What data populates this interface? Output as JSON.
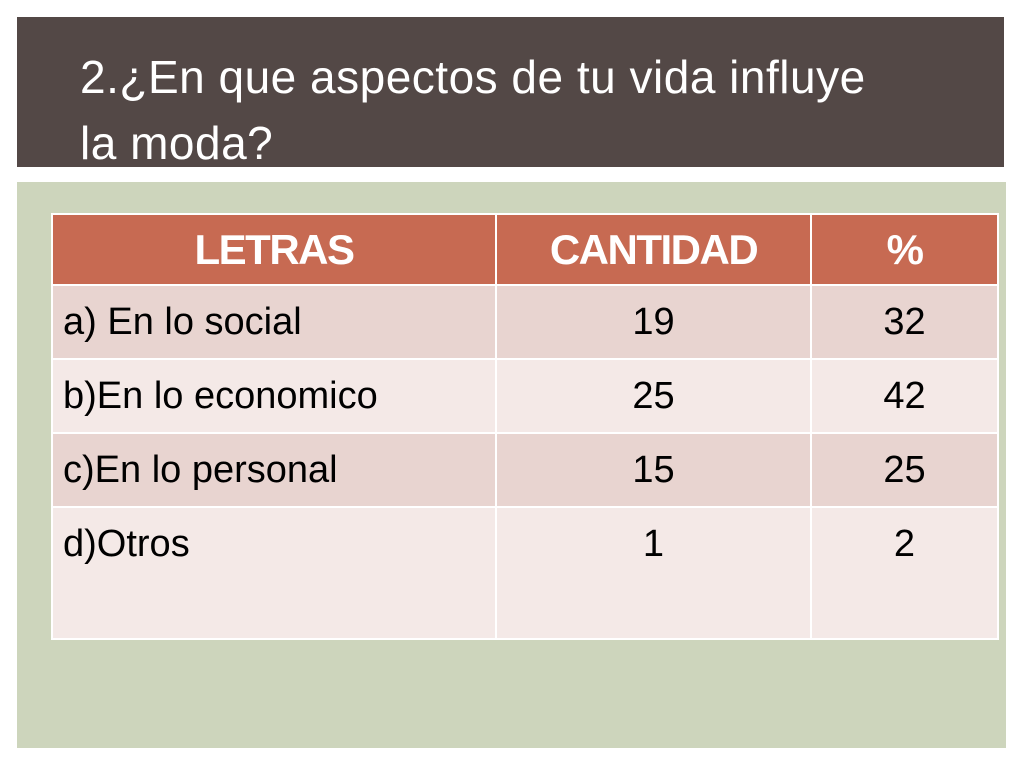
{
  "slide": {
    "title": "2.¿En que aspectos de tu vida influye la moda?"
  },
  "table": {
    "headers": [
      "LETRAS",
      "CANTIDAD",
      "%"
    ],
    "rows": [
      {
        "letra": "a) En lo social",
        "cantidad": "19",
        "porcentaje": "32"
      },
      {
        "letra": "b)En lo economico",
        "cantidad": "25",
        "porcentaje": "42"
      },
      {
        "letra": "c)En lo personal",
        "cantidad": "15",
        "porcentaje": "25"
      },
      {
        "letra": "d)Otros",
        "cantidad": "1",
        "porcentaje": "2"
      }
    ]
  },
  "colors": {
    "title_bar": "#534846",
    "panel": "#cdd5bc",
    "header": "#c76a52",
    "row_odd": "#e8d4d0",
    "row_even": "#f4e9e7"
  }
}
